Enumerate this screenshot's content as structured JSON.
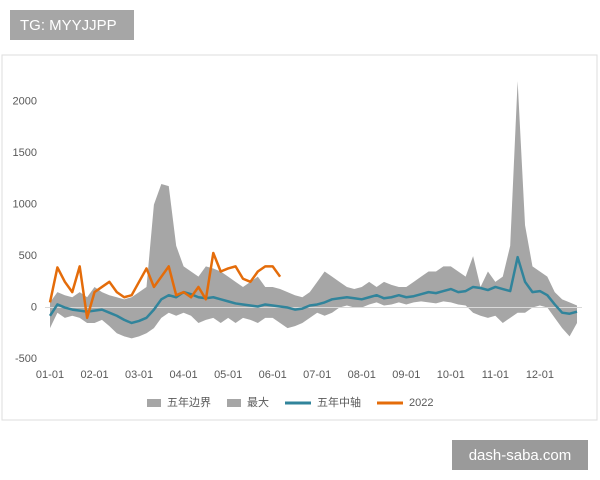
{
  "badge": "TG: MYYJJPP",
  "watermark": "dash-saba.com",
  "chart_data": {
    "type": "line",
    "categories": [
      "01-01",
      null,
      null,
      null,
      null,
      null,
      "02-01",
      null,
      null,
      null,
      null,
      null,
      "03-01",
      null,
      null,
      null,
      null,
      null,
      "04-01",
      null,
      null,
      null,
      null,
      null,
      "05-01",
      null,
      null,
      null,
      null,
      null,
      "06-01",
      null,
      null,
      null,
      null,
      null,
      "07-01",
      null,
      null,
      null,
      null,
      null,
      "08-01",
      null,
      null,
      null,
      null,
      null,
      "09-01",
      null,
      null,
      null,
      null,
      null,
      "10-01",
      null,
      null,
      null,
      null,
      null,
      "11-01",
      null,
      null,
      null,
      null,
      null,
      "12-01",
      null,
      null,
      null,
      null,
      null
    ],
    "ylim": [
      -500,
      2250
    ],
    "yticks": [
      -500,
      0,
      500,
      1000,
      1500,
      2000
    ],
    "grid": false,
    "legend": "bottom",
    "series": [
      {
        "name": "五年边界",
        "color": "#a6a6a6",
        "role": "band-lower",
        "values": [
          -200,
          -50,
          -100,
          -80,
          -100,
          -150,
          -150,
          -120,
          -180,
          -250,
          -280,
          -300,
          -280,
          -250,
          -200,
          -100,
          -50,
          -80,
          -50,
          -80,
          -150,
          -120,
          -100,
          -150,
          -100,
          -150,
          -100,
          -120,
          -150,
          -100,
          -100,
          -150,
          -200,
          -180,
          -150,
          -100,
          -50,
          -80,
          -50,
          0,
          20,
          0,
          0,
          30,
          50,
          20,
          30,
          50,
          30,
          50,
          60,
          50,
          40,
          60,
          50,
          30,
          20,
          -50,
          -80,
          -100,
          -80,
          -150,
          -100,
          -50,
          -50,
          0,
          20,
          0,
          -100,
          -200,
          -280,
          -150
        ]
      },
      {
        "name": "最大",
        "color": "#a6a6a6",
        "role": "band-upper",
        "values": [
          50,
          150,
          120,
          100,
          150,
          100,
          200,
          150,
          120,
          100,
          80,
          100,
          150,
          200,
          1000,
          1200,
          1180,
          600,
          400,
          350,
          300,
          400,
          380,
          350,
          300,
          250,
          200,
          250,
          300,
          200,
          200,
          180,
          150,
          120,
          100,
          150,
          250,
          350,
          300,
          250,
          200,
          180,
          200,
          250,
          200,
          250,
          220,
          200,
          200,
          250,
          300,
          350,
          350,
          400,
          400,
          350,
          300,
          500,
          200,
          350,
          250,
          300,
          600,
          2200,
          800,
          400,
          350,
          300,
          150,
          80,
          50,
          20
        ]
      },
      {
        "name": "五年中轴",
        "color": "#31849b",
        "values": [
          -80,
          30,
          0,
          -20,
          -30,
          -40,
          -30,
          -20,
          -50,
          -80,
          -120,
          -150,
          -130,
          -100,
          -20,
          80,
          120,
          100,
          150,
          130,
          100,
          90,
          100,
          80,
          60,
          40,
          30,
          20,
          10,
          30,
          20,
          10,
          0,
          -20,
          -10,
          20,
          30,
          50,
          80,
          90,
          100,
          90,
          80,
          100,
          120,
          90,
          100,
          120,
          100,
          110,
          130,
          150,
          140,
          160,
          180,
          150,
          160,
          200,
          190,
          170,
          200,
          180,
          160,
          490,
          250,
          150,
          160,
          120,
          30,
          -50,
          -60,
          -40
        ]
      },
      {
        "name": "2022",
        "color": "#e46c0a",
        "values": [
          50,
          390,
          250,
          150,
          400,
          -100,
          150,
          200,
          250,
          150,
          100,
          120,
          250,
          380,
          200,
          300,
          400,
          120,
          150,
          100,
          200,
          80,
          530,
          350,
          380,
          400,
          280,
          250,
          350,
          400,
          400,
          300,
          null,
          null,
          null,
          null,
          null,
          null,
          null,
          null,
          null,
          null,
          null,
          null,
          null,
          null,
          null,
          null,
          null,
          null,
          null,
          null,
          null,
          null,
          null,
          null,
          null,
          null,
          null,
          null,
          null,
          null,
          null,
          null,
          null,
          null,
          null,
          null,
          null,
          null,
          null,
          null
        ]
      }
    ]
  }
}
